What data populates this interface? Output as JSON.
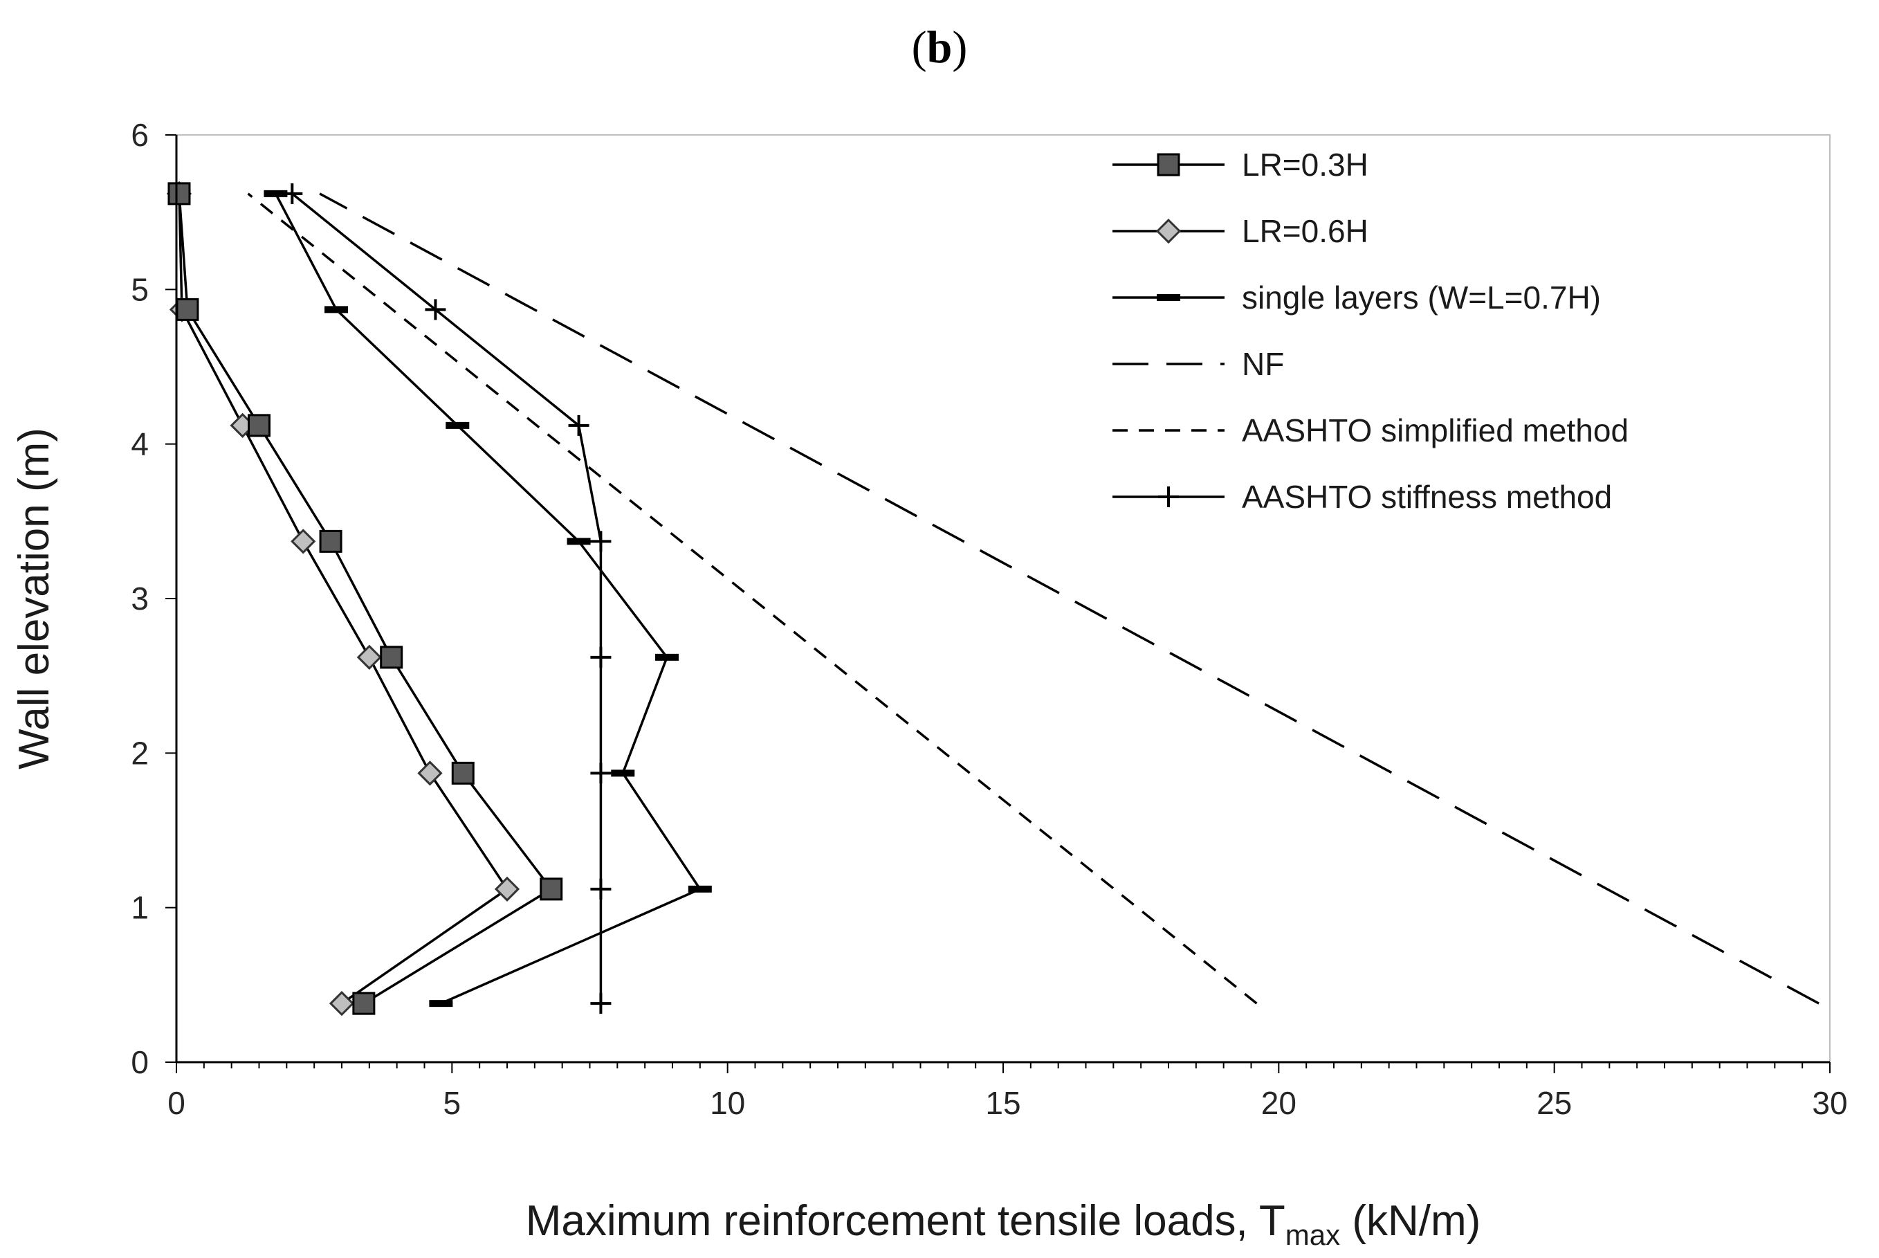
{
  "panel_label": "(b)",
  "chart_data": {
    "type": "line",
    "xlabel_main": "Maximum reinforcement tensile loads, T",
    "xlabel_sub": "max",
    "xlabel_unit": " (kN/m)",
    "ylabel": "Wall elevation (m)",
    "xlim": [
      0,
      30
    ],
    "ylim": [
      0,
      6
    ],
    "xticks": [
      "0",
      "5",
      "10",
      "15",
      "20",
      "25",
      "30"
    ],
    "yticks": [
      "0",
      "1",
      "2",
      "3",
      "4",
      "5",
      "6"
    ],
    "grid": false,
    "legend_position": "top-right",
    "series": [
      {
        "name": "LR=0.3H",
        "marker": "square",
        "dash": "solid",
        "x": [
          3.4,
          6.8,
          5.2,
          3.9,
          2.8,
          1.5,
          0.2,
          0.05
        ],
        "y": [
          0.38,
          1.12,
          1.87,
          2.62,
          3.37,
          4.12,
          4.87,
          5.62
        ]
      },
      {
        "name": "LR=0.6H",
        "marker": "diamond",
        "dash": "solid",
        "x": [
          3.0,
          6.0,
          4.6,
          3.5,
          2.3,
          1.2,
          0.1,
          0.05
        ],
        "y": [
          0.38,
          1.12,
          1.87,
          2.62,
          3.37,
          4.12,
          4.87,
          5.62
        ]
      },
      {
        "name": "single layers (W=L=0.7H)",
        "marker": "dash",
        "dash": "solid",
        "x": [
          4.8,
          9.5,
          8.1,
          8.9,
          7.3,
          5.1,
          2.9,
          1.8
        ],
        "y": [
          0.38,
          1.12,
          1.87,
          2.62,
          3.37,
          4.12,
          4.87,
          5.62
        ]
      },
      {
        "name": "NF",
        "marker": "none",
        "dash": "long",
        "x": [
          29.8,
          2.6
        ],
        "y": [
          0.38,
          5.62
        ]
      },
      {
        "name": "AASHTO simplified method",
        "marker": "none",
        "dash": "short",
        "x": [
          19.6,
          1.3
        ],
        "y": [
          0.38,
          5.62
        ]
      },
      {
        "name": "AASHTO stiffness method",
        "marker": "plus",
        "dash": "solid",
        "x": [
          7.7,
          7.7,
          7.7,
          7.7,
          7.7,
          7.3,
          4.7,
          2.1
        ],
        "y": [
          0.38,
          1.12,
          1.87,
          2.62,
          3.37,
          4.12,
          4.87,
          5.62
        ]
      }
    ]
  }
}
